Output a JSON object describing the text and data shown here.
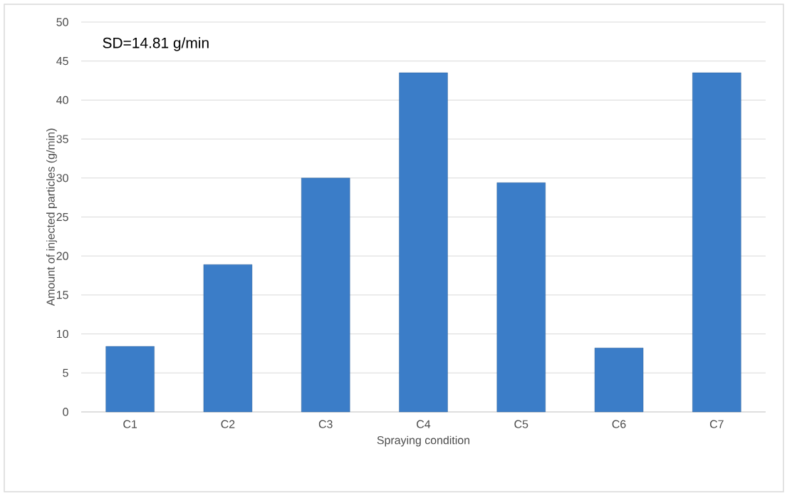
{
  "chart_data": {
    "type": "bar",
    "xlabel": "Spraying condition",
    "ylabel": "Amount of injected particles (g/min)",
    "annotations": [
      "SD=14.81 g/min"
    ],
    "categories": [
      "C1",
      "C2",
      "C3",
      "C4",
      "C5",
      "C6",
      "C7"
    ],
    "values": [
      8.4,
      18.9,
      30.0,
      43.5,
      29.4,
      8.2,
      43.5
    ],
    "color": "#3b7dc8",
    "ylim": [
      0,
      50
    ],
    "yticks": [
      0,
      5,
      10,
      15,
      20,
      25,
      30,
      35,
      40,
      45,
      50
    ],
    "grid": "y"
  }
}
